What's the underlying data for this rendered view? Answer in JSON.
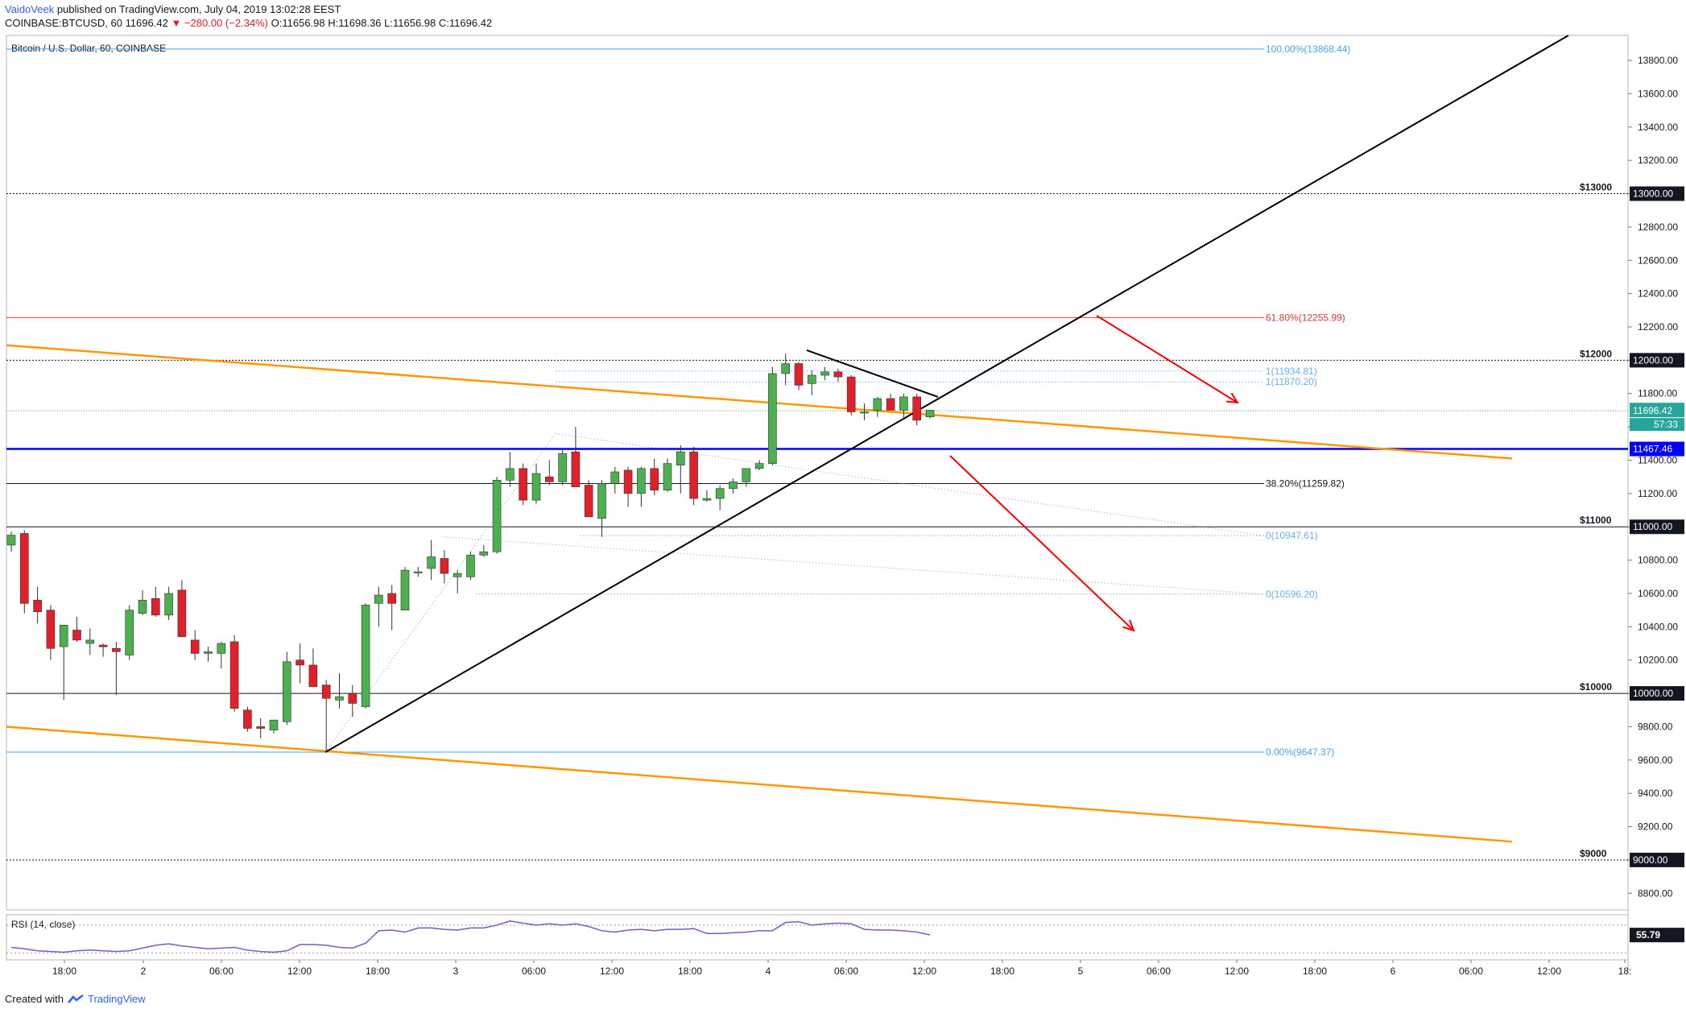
{
  "header": {
    "author": "VaidoVeek",
    "published_text": "published on TradingView.com, July 04, 2019 13:02:28 EEST",
    "symbol": "COINBASE:BTCUSD, 60",
    "last": "11696.42",
    "change": "▼ −280.00 (−2.34%)",
    "ohlc_o_label": "O:",
    "ohlc_o": "11656.98",
    "ohlc_h_label": "H:",
    "ohlc_h": "11698.36",
    "ohlc_l_label": "L:",
    "ohlc_l": "11656.98",
    "ohlc_c_label": "C:",
    "ohlc_c": "11696.42"
  },
  "footer": {
    "created_with": "Created with",
    "brand": "TradingView"
  },
  "colors": {
    "up": "#26a69a",
    "up_fill": "#4caf50",
    "down": "#e0202a",
    "orange": "#ff9800",
    "support_blue": "#0000ff",
    "fib_blue": "#42a5f5",
    "fib_red": "#e53935",
    "arrow_red": "#ff0000"
  },
  "chart_data": {
    "type": "candlestick",
    "title": "Bitcoin / U.S. Dollar, 60, COINBASE",
    "ylim": [
      8700,
      13950
    ],
    "y_ticks": [
      "8800.00",
      "9000.00",
      "9200.00",
      "9400.00",
      "9600.00",
      "9800.00",
      "10000.00",
      "10200.00",
      "10400.00",
      "10600.00",
      "10800.00",
      "11000.00",
      "11200.00",
      "11400.00",
      "11600.00",
      "11800.00",
      "12000.00",
      "12200.00",
      "12400.00",
      "12600.00",
      "12800.00",
      "13000.00",
      "13200.00",
      "13400.00",
      "13600.00",
      "13800.00"
    ],
    "x_ticks": [
      "18:00",
      "2",
      "06:00",
      "12:00",
      "18:00",
      "3",
      "06:00",
      "12:00",
      "18:00",
      "4",
      "06:00",
      "12:00",
      "18:00",
      "5",
      "06:00",
      "12:00",
      "18:00",
      "6",
      "06:00",
      "12:00",
      "18:"
    ],
    "horizontal_levels": [
      {
        "price": 13000,
        "label": "$13000",
        "axis_label": "13000.00"
      },
      {
        "price": 12000,
        "label": "$12000",
        "axis_label": "12000.00"
      },
      {
        "price": 11000,
        "label": "$11000",
        "axis_label": "11000.00"
      },
      {
        "price": 10000,
        "label": "$10000",
        "axis_label": "10000.00"
      },
      {
        "price": 9000,
        "label": "$9000",
        "axis_label": "9000.00"
      }
    ],
    "fib_levels": [
      {
        "price": 13868.44,
        "label": "100.00%(13868.44)",
        "color": "#42a5f5"
      },
      {
        "price": 12255.99,
        "label": "61.80%(12255.99)",
        "color": "#e53935"
      },
      {
        "price": 11259.82,
        "label": "38.20%(11259.82)",
        "color": "#131722"
      },
      {
        "price": 9647.37,
        "label": "0.00%(9647.37)",
        "color": "#42a5f5"
      }
    ],
    "projection_levels": [
      {
        "price": 11934.81,
        "label": "1(11934.81)"
      },
      {
        "price": 11870.2,
        "label": "1(11870.20)"
      },
      {
        "price": 10947.61,
        "label": "0(10947.61)"
      },
      {
        "price": 10596.2,
        "label": "0(10596.20)"
      }
    ],
    "support_level": {
      "price": 11467.46,
      "axis_label": "11467.46"
    },
    "last_price": {
      "price": 11696.42,
      "axis_label": "11696.42",
      "countdown": "57:33"
    },
    "candles": [
      [
        10890,
        10970,
        10850,
        10950
      ],
      [
        10960,
        10980,
        10480,
        10540
      ],
      [
        10560,
        10640,
        10420,
        10490
      ],
      [
        10500,
        10530,
        10200,
        10270
      ],
      [
        10280,
        10400,
        9960,
        10410
      ],
      [
        10380,
        10460,
        10310,
        10320
      ],
      [
        10300,
        10390,
        10230,
        10320
      ],
      [
        10290,
        10300,
        10220,
        10280
      ],
      [
        10270,
        10310,
        9990,
        10250
      ],
      [
        10230,
        10530,
        10200,
        10500
      ],
      [
        10480,
        10620,
        10470,
        10560
      ],
      [
        10570,
        10640,
        10460,
        10470
      ],
      [
        10470,
        10640,
        10440,
        10600
      ],
      [
        10620,
        10680,
        10350,
        10340
      ],
      [
        10320,
        10380,
        10200,
        10240
      ],
      [
        10240,
        10280,
        10190,
        10250
      ],
      [
        10240,
        10310,
        10150,
        10300
      ],
      [
        10310,
        10350,
        9890,
        9910
      ],
      [
        9900,
        9920,
        9770,
        9790
      ],
      [
        9800,
        9850,
        9730,
        9790
      ],
      [
        9780,
        9830,
        9760,
        9840
      ],
      [
        9830,
        10250,
        9810,
        10190
      ],
      [
        10200,
        10300,
        10060,
        10170
      ],
      [
        10170,
        10270,
        10040,
        10040
      ],
      [
        10050,
        10080,
        9660,
        9970
      ],
      [
        9960,
        10120,
        9910,
        9980
      ],
      [
        10000,
        10050,
        9860,
        9940
      ],
      [
        9920,
        10540,
        9910,
        10530
      ],
      [
        10540,
        10640,
        10400,
        10590
      ],
      [
        10600,
        10650,
        10380,
        10540
      ],
      [
        10500,
        10760,
        10500,
        10740
      ],
      [
        10730,
        10760,
        10700,
        10730
      ],
      [
        10750,
        10920,
        10680,
        10820
      ],
      [
        10810,
        10860,
        10660,
        10720
      ],
      [
        10700,
        10740,
        10600,
        10720
      ],
      [
        10700,
        10850,
        10680,
        10830
      ],
      [
        10830,
        10890,
        10820,
        10850
      ],
      [
        10850,
        11300,
        10840,
        11280
      ],
      [
        11280,
        11450,
        11240,
        11350
      ],
      [
        11350,
        11380,
        11130,
        11160
      ],
      [
        11160,
        11380,
        11140,
        11320
      ],
      [
        11300,
        11400,
        11250,
        11270
      ],
      [
        11270,
        11470,
        11250,
        11440
      ],
      [
        11450,
        11600,
        11240,
        11240
      ],
      [
        11250,
        11280,
        11070,
        11060
      ],
      [
        11050,
        11280,
        10940,
        11260
      ],
      [
        11260,
        11360,
        11200,
        11330
      ],
      [
        11340,
        11360,
        11120,
        11200
      ],
      [
        11200,
        11360,
        11120,
        11350
      ],
      [
        11350,
        11410,
        11190,
        11220
      ],
      [
        11220,
        11410,
        11210,
        11380
      ],
      [
        11370,
        11490,
        11200,
        11450
      ],
      [
        11450,
        11480,
        11130,
        11170
      ],
      [
        11160,
        11220,
        11150,
        11170
      ],
      [
        11170,
        11250,
        11100,
        11230
      ],
      [
        11230,
        11290,
        11200,
        11270
      ],
      [
        11270,
        11340,
        11240,
        11350
      ],
      [
        11350,
        11400,
        11340,
        11380
      ],
      [
        11380,
        11960,
        11370,
        11920
      ],
      [
        11920,
        12040,
        11850,
        11980
      ],
      [
        11980,
        11990,
        11820,
        11850
      ],
      [
        11860,
        11940,
        11790,
        11910
      ],
      [
        11910,
        11960,
        11880,
        11930
      ],
      [
        11930,
        11950,
        11870,
        11900
      ],
      [
        11900,
        11910,
        11670,
        11690
      ],
      [
        11690,
        11740,
        11640,
        11690
      ],
      [
        11700,
        11780,
        11660,
        11770
      ],
      [
        11770,
        11800,
        11700,
        11700
      ],
      [
        11700,
        11800,
        11650,
        11780
      ],
      [
        11780,
        11800,
        11610,
        11640
      ],
      [
        11660,
        11700,
        11650,
        11700
      ]
    ],
    "trendlines": [
      {
        "name": "orange-upper",
        "points": [
          [
            "x0",
            12090
          ],
          [
            "x100",
            11410
          ]
        ]
      },
      {
        "name": "orange-lower",
        "points": [
          [
            "x0",
            9800
          ],
          [
            "x100",
            9110
          ]
        ]
      }
    ],
    "rsi": {
      "label": "RSI (14, close)",
      "value": "55.79"
    }
  }
}
